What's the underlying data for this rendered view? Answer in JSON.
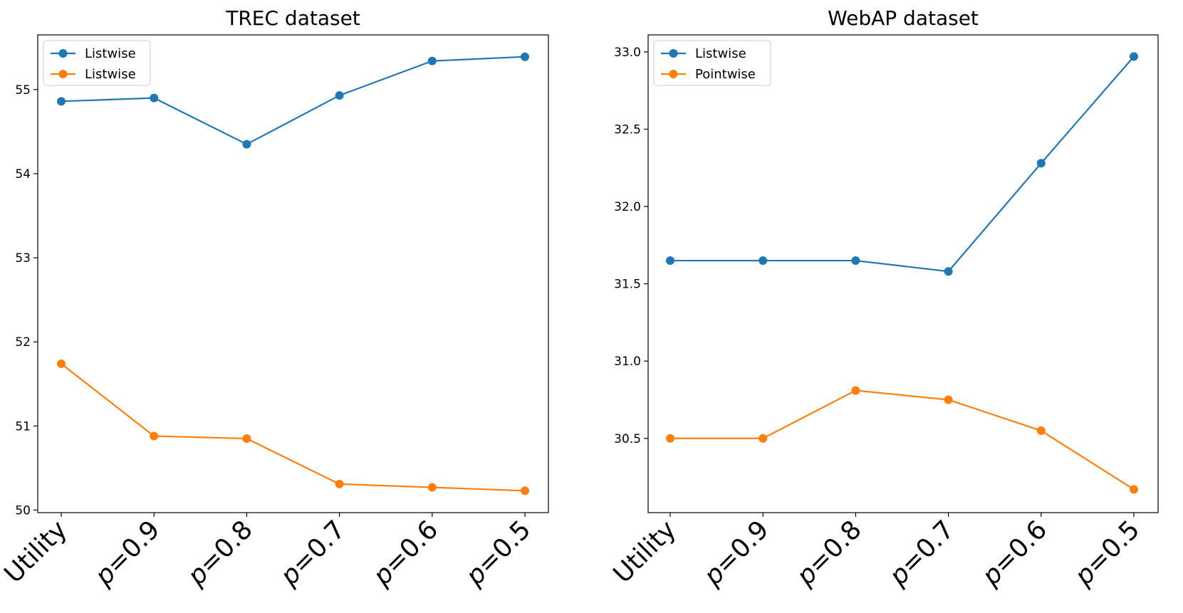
{
  "chart_data": [
    {
      "type": "line",
      "title": "TREC dataset",
      "xlabel": "",
      "ylabel": "",
      "categories": [
        "Utility",
        "p=0.9",
        "p=0.8",
        "p=0.7",
        "p=0.6",
        "p=0.5"
      ],
      "ylim": [
        49.97,
        55.65
      ],
      "yticks": [
        50,
        51,
        52,
        53,
        54,
        55
      ],
      "ytick_labels": [
        "50",
        "51",
        "52",
        "53",
        "54",
        "55"
      ],
      "grid": false,
      "legend_position": "top-left",
      "series": [
        {
          "name": "Listwise",
          "color": "#1f77b4",
          "values": [
            54.86,
            54.9,
            54.35,
            54.93,
            55.34,
            55.39
          ]
        },
        {
          "name": "Listwise",
          "color": "#ff7f0e",
          "values": [
            51.74,
            50.88,
            50.85,
            50.31,
            50.27,
            50.23
          ]
        }
      ]
    },
    {
      "type": "line",
      "title": "WebAP dataset",
      "xlabel": "",
      "ylabel": "",
      "categories": [
        "Utility",
        "p=0.9",
        "p=0.8",
        "p=0.7",
        "p=0.6",
        "p=0.5"
      ],
      "ylim": [
        30.02,
        33.11
      ],
      "yticks": [
        30.5,
        31.0,
        31.5,
        32.0,
        32.5,
        33.0
      ],
      "ytick_labels": [
        "30.5",
        "31.0",
        "31.5",
        "32.0",
        "32.5",
        "33.0"
      ],
      "grid": false,
      "legend_position": "top-left",
      "series": [
        {
          "name": "Listwise",
          "color": "#1f77b4",
          "values": [
            31.65,
            31.65,
            31.65,
            31.58,
            32.28,
            32.97
          ]
        },
        {
          "name": "Pointwise",
          "color": "#ff7f0e",
          "values": [
            30.5,
            30.5,
            30.81,
            30.75,
            30.55,
            30.17
          ]
        }
      ]
    }
  ]
}
